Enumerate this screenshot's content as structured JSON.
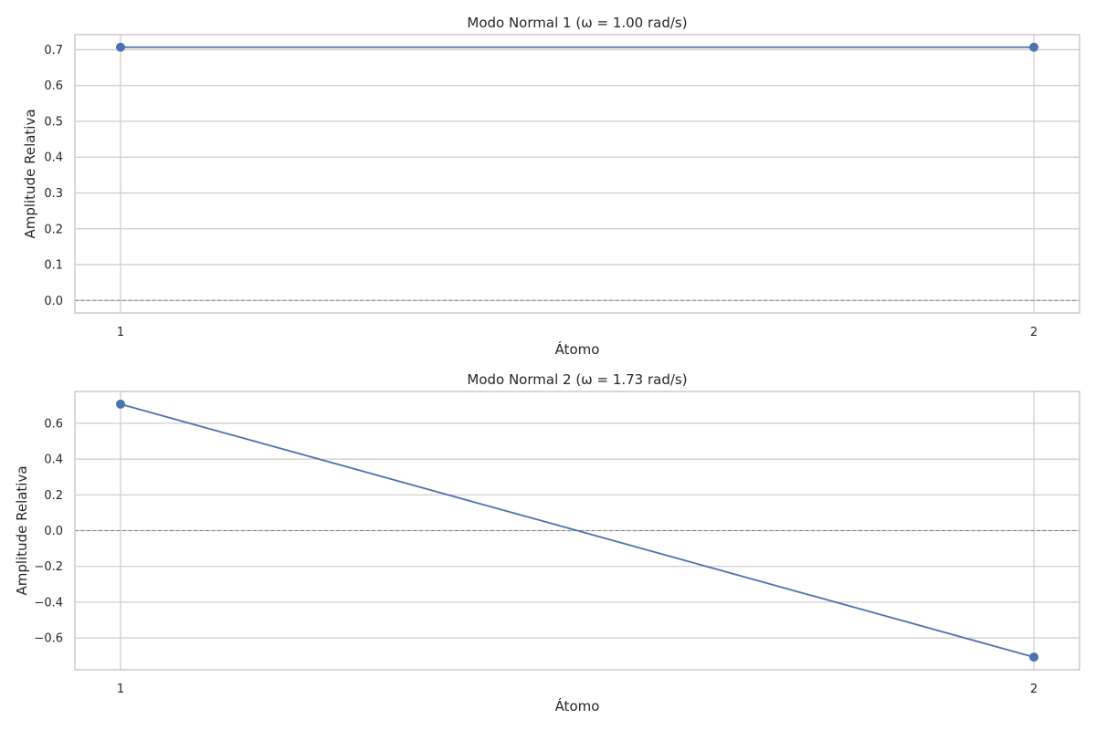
{
  "chart_data": [
    {
      "type": "line",
      "title": "Modo Normal 1 (ω = 1.00 rad/s)",
      "xlabel": "Átomo",
      "ylabel": "Amplitude Relativa",
      "x": [
        1,
        2
      ],
      "xticks": [
        "1",
        "2"
      ],
      "xlim": [
        0.95,
        2.05
      ],
      "ylim": [
        -0.035,
        0.742
      ],
      "yticks": [
        0.0,
        0.1,
        0.2,
        0.3,
        0.4,
        0.5,
        0.6,
        0.7
      ],
      "ytick_labels": [
        "0.0",
        "0.1",
        "0.2",
        "0.3",
        "0.4",
        "0.5",
        "0.6",
        "0.7"
      ],
      "series": [
        {
          "values": [
            0.707,
            0.707
          ],
          "color": "#4c72b0",
          "marker": "circle"
        }
      ],
      "reference_line": {
        "y": 0,
        "style": "dashed",
        "color": "#808080"
      },
      "grid": true,
      "legend": "none"
    },
    {
      "type": "line",
      "title": "Modo Normal 2 (ω = 1.73 rad/s)",
      "xlabel": "Átomo",
      "ylabel": "Amplitude Relativa",
      "x": [
        1,
        2
      ],
      "xticks": [
        "1",
        "2"
      ],
      "xlim": [
        0.95,
        2.05
      ],
      "ylim": [
        -0.778,
        0.778
      ],
      "yticks": [
        -0.6,
        -0.4,
        -0.2,
        0.0,
        0.2,
        0.4,
        0.6
      ],
      "ytick_labels": [
        "−0.6",
        "−0.4",
        "−0.2",
        "0.0",
        "0.2",
        "0.4",
        "0.6"
      ],
      "series": [
        {
          "values": [
            0.707,
            -0.707
          ],
          "color": "#4c72b0",
          "marker": "circle"
        }
      ],
      "reference_line": {
        "y": 0,
        "style": "dashed",
        "color": "#808080"
      },
      "grid": true,
      "legend": "none"
    }
  ]
}
